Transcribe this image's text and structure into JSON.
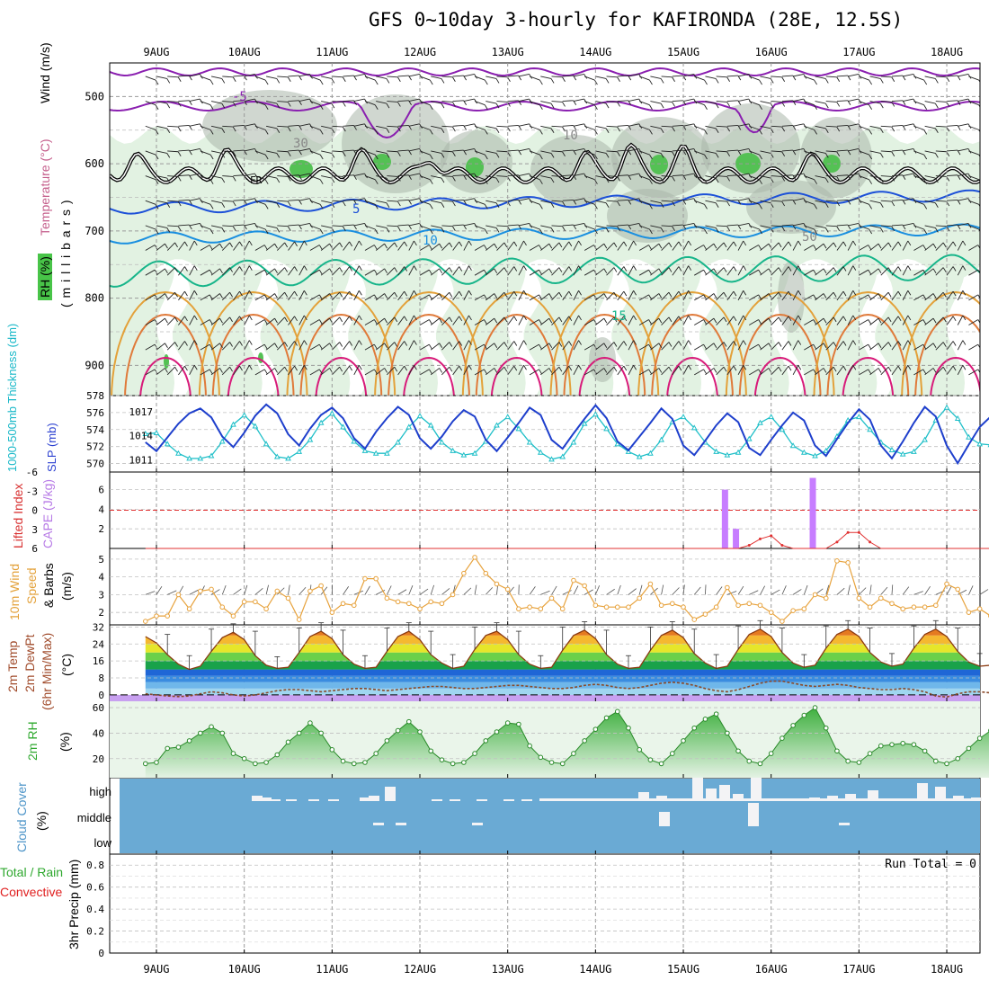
{
  "title": "GFS 0~10day 3-hourly for KAFIRONDA (28E, 12.5S)",
  "dates": [
    "9AUG",
    "10AUG",
    "11AUG",
    "12AUG",
    "13AUG",
    "14AUG",
    "15AUG",
    "16AUG",
    "17AUG",
    "18AUG"
  ],
  "colors": {
    "grid": "#9a9a9a",
    "humid_light": "#e2f2e2",
    "humid_mid": "#b9ddb9",
    "humid_gray": "#a9b6a9",
    "humid_green": "#54c154",
    "cloud_blue": "#6aaad4",
    "cape": "#c77dff",
    "li": "#e03030",
    "wind10": "#e7a23c",
    "thick": "#1fbfc8",
    "slp": "#1e3fcc"
  },
  "upper_air": {
    "ylabel_parts": [
      "Wind (m/s)",
      "Temperature (°C)",
      "RH (%)"
    ],
    "millibars_label": "( m i l l i b a r s )",
    "pressure_ticks": [
      "500",
      "600",
      "700",
      "800",
      "900"
    ],
    "contour_labels": [
      {
        "text": "-5",
        "color": "#8a1fb0"
      },
      {
        "text": "30",
        "color": "#888888"
      },
      {
        "text": "10",
        "color": "#888888"
      },
      {
        "text": "FR",
        "color": "#000000"
      },
      {
        "text": "5",
        "color": "#1c50d8"
      },
      {
        "text": "10",
        "color": "#1a8fe0"
      },
      {
        "text": "15",
        "color": "#17b58a"
      },
      {
        "text": "50",
        "color": "#888888"
      }
    ]
  },
  "thickness_slp": {
    "left_label": "1000-500mb Thickness (dm)",
    "right_label": "SLP (mb)",
    "thickness_ticks": [
      "570",
      "572",
      "574",
      "576",
      "578"
    ],
    "slp_ticks": [
      "1011",
      "1014",
      "1017"
    ]
  },
  "cape_li": {
    "li_label": "Lifted Index",
    "cape_label": "CAPE (J/kg)",
    "li_ticks": [
      "6",
      "3",
      "0",
      "-3",
      "-6"
    ],
    "cape_ticks": [
      "2",
      "4",
      "6"
    ]
  },
  "wind10": {
    "label_lines": [
      "10m Wind",
      "Speed",
      "& Barbs",
      "(m/s)"
    ],
    "ticks": [
      "2",
      "3",
      "4",
      "5"
    ]
  },
  "temp2m": {
    "label_lines": [
      "2m Temp",
      "2m DewPt",
      "(6hr Min/Max)",
      "(°C)"
    ],
    "ticks": [
      "0",
      "8",
      "16",
      "24",
      "32"
    ]
  },
  "rh2m": {
    "label_lines": [
      "2m RH",
      "(%)"
    ],
    "ticks": [
      "20",
      "40",
      "60"
    ]
  },
  "cloud": {
    "label_lines": [
      "Cloud Cover",
      "(%)"
    ],
    "levels": [
      "high",
      "middle",
      "low"
    ]
  },
  "precip": {
    "label_lines": [
      "Total / Rain",
      "Convective",
      "3hr Precip (mm)"
    ],
    "ticks": [
      "0",
      "0.2",
      "0.4",
      "0.6",
      "0.8"
    ],
    "run_total": "Run Total = 0"
  },
  "chart_data": [
    {
      "type": "line",
      "name": "1000-500mb Thickness",
      "y_units": "dm",
      "ylim": [
        569,
        578
      ],
      "values": [
        573.5,
        573.6,
        572.3,
        571.2,
        570.6,
        570.6,
        570.9,
        572.6,
        574.6,
        575.7,
        574.4,
        572.3,
        570.8,
        570.6,
        571.4,
        572.8,
        574.8,
        575.9,
        574.3,
        572.6,
        571.5,
        571.2,
        571.2,
        572.5,
        574.3,
        575.6,
        574.5,
        572.5,
        571.5,
        571.0,
        571.2,
        572.6,
        574.5,
        575.5,
        574.1,
        572.5,
        571.3,
        570.5,
        570.8,
        572.5,
        574.7,
        575.8,
        574.1,
        572.3,
        571.4,
        570.8,
        571.2,
        572.8,
        574.9,
        575.5,
        574.2,
        572.5,
        571.4,
        571.0,
        571.3,
        572.9,
        574.8,
        575.5,
        574.0,
        572.1,
        571.3,
        570.9,
        571.5,
        573.2,
        575.1,
        575.5,
        574.0,
        572.5,
        571.6,
        571.1,
        571.4,
        572.8,
        575.1,
        576.6,
        575.3,
        573.1,
        572.3,
        572.2,
        572.7,
        574.2,
        576.0
      ]
    },
    {
      "type": "line",
      "name": "SLP",
      "y_units": "mb",
      "ylim": [
        1009.5,
        1019
      ],
      "values": [
        1013.2,
        1012.1,
        1013.8,
        1015.5,
        1016.8,
        1017.4,
        1016.3,
        1013.9,
        1012.6,
        1014.4,
        1016.5,
        1017.9,
        1016.8,
        1014.2,
        1012.8,
        1014.9,
        1016.6,
        1017.5,
        1016.2,
        1013.7,
        1012.4,
        1014.5,
        1016.2,
        1017.6,
        1016.6,
        1013.7,
        1012.4,
        1013.9,
        1015.8,
        1017.2,
        1016.4,
        1013.5,
        1012.1,
        1013.8,
        1015.6,
        1017.5,
        1016.6,
        1013.5,
        1012.4,
        1014.3,
        1016.1,
        1017.8,
        1016.2,
        1013.3,
        1012.2,
        1013.9,
        1015.6,
        1017.4,
        1016.1,
        1012.8,
        1011.6,
        1013.4,
        1015.3,
        1016.8,
        1015.7,
        1012.5,
        1011.6,
        1013.5,
        1015.3,
        1016.9,
        1015.9,
        1012.8,
        1011.5,
        1013.6,
        1015.6,
        1017.3,
        1016.0,
        1012.8,
        1011.2,
        1013.3,
        1015.6,
        1017.6,
        1016.4,
        1012.8,
        1010.6,
        1012.9,
        1015.1,
        1016.4,
        1016.3,
        1017.2,
        1018.3
      ]
    },
    {
      "type": "bar",
      "name": "CAPE",
      "y_units": "J/kg",
      "ylim": [
        0,
        7.8
      ],
      "bars": [
        {
          "day_offset": 7.0,
          "value": 6.0
        },
        {
          "day_offset": 7.125,
          "value": 2.0
        },
        {
          "day_offset": 8.0,
          "value": 7.2
        }
      ]
    },
    {
      "type": "line",
      "name": "Lifted Index",
      "y_units": "degC",
      "ylim": [
        6,
        -6
      ],
      "values": [
        6.0,
        6.0,
        6.0,
        6.0,
        6.0,
        6.0,
        6.0,
        6.0,
        6.0,
        6.0,
        6.0,
        6.0,
        6.0,
        6.0,
        6.0,
        6.0,
        6.0,
        6.0,
        6.0,
        6.0,
        6.0,
        6.0,
        6.0,
        6.0,
        6.0,
        6.0,
        6.0,
        6.0,
        6.0,
        6.0,
        6.0,
        6.0,
        6.0,
        6.0,
        6.0,
        6.0,
        6.0,
        6.0,
        6.0,
        6.0,
        6.0,
        6.0,
        6.0,
        6.0,
        6.0,
        6.0,
        6.0,
        6.0,
        6.0,
        6.0,
        6.0,
        6.0,
        6.0,
        6.0,
        6.0,
        5.5,
        4.5,
        4.0,
        5.5,
        6.0,
        6.0,
        6.0,
        6.0,
        5.0,
        3.5,
        3.5,
        5.0,
        6.0,
        6.0,
        6.0,
        6.0,
        6.0,
        6.0,
        6.0,
        6.0,
        6.0,
        6.0,
        6.0,
        6.0,
        6.0,
        6.0
      ]
    },
    {
      "type": "line",
      "name": "10m Wind Speed",
      "y_units": "m/s",
      "ylim": [
        1.3,
        5.6
      ],
      "values": [
        1.5,
        1.8,
        1.8,
        3.0,
        2.2,
        3.2,
        3.3,
        2.3,
        1.8,
        2.6,
        2.6,
        2.2,
        3.2,
        2.8,
        1.6,
        3.2,
        3.5,
        2.0,
        2.5,
        2.4,
        3.9,
        3.9,
        2.8,
        2.6,
        2.5,
        2.2,
        2.6,
        2.5,
        3.0,
        4.2,
        5.1,
        4.2,
        3.6,
        3.3,
        2.2,
        2.3,
        2.2,
        2.8,
        2.2,
        3.8,
        3.5,
        2.4,
        2.3,
        2.3,
        2.3,
        2.8,
        3.6,
        2.4,
        2.5,
        2.3,
        1.6,
        1.9,
        2.3,
        3.4,
        2.4,
        2.5,
        2.4,
        2.0,
        1.5,
        2.1,
        2.2,
        3.0,
        2.8,
        4.9,
        4.8,
        2.8,
        2.3,
        2.8,
        2.5,
        2.2,
        2.3,
        2.3,
        2.4,
        3.6,
        3.3,
        2.0,
        2.2,
        1.8,
        1.6,
        1.9,
        2.9,
        3.1,
        3.6
      ]
    },
    {
      "type": "area",
      "name": "2m Temperature",
      "y_units": "degC",
      "ylim": [
        -3,
        33
      ],
      "values": [
        27.5,
        24.5,
        19.0,
        14.5,
        12.0,
        13.5,
        20.5,
        27.0,
        29.5,
        26.0,
        18.5,
        14.0,
        12.5,
        13.0,
        20.0,
        27.5,
        30.0,
        26.5,
        19.0,
        14.5,
        12.5,
        13.0,
        20.5,
        27.5,
        30.0,
        26.0,
        19.0,
        15.0,
        12.5,
        13.5,
        21.5,
        28.0,
        30.0,
        26.0,
        19.0,
        14.5,
        12.5,
        13.0,
        21.0,
        28.0,
        30.5,
        26.5,
        19.0,
        14.5,
        12.5,
        13.0,
        21.0,
        28.0,
        30.5,
        27.0,
        19.5,
        15.0,
        12.5,
        13.5,
        21.5,
        28.5,
        31.0,
        27.5,
        20.0,
        15.0,
        13.0,
        14.0,
        22.0,
        28.5,
        31.0,
        27.5,
        20.0,
        15.5,
        13.5,
        14.5,
        22.0,
        28.5,
        31.0,
        27.5,
        20.5,
        15.5,
        13.5,
        14.0,
        17.0
      ]
    },
    {
      "type": "line",
      "name": "2m Dew Point",
      "y_units": "degC",
      "ylim": [
        -3,
        33
      ],
      "values": [
        0.5,
        0.0,
        -0.5,
        -0.8,
        -0.5,
        0.5,
        1.5,
        1.0,
        0.0,
        -0.5,
        0.0,
        1.0,
        2.0,
        2.5,
        2.5,
        2.0,
        1.5,
        2.0,
        2.5,
        3.0,
        3.0,
        2.5,
        2.0,
        2.5,
        3.0,
        3.5,
        4.0,
        4.0,
        3.5,
        3.0,
        3.0,
        3.5,
        4.0,
        4.5,
        4.5,
        4.0,
        3.5,
        3.0,
        3.0,
        3.5,
        4.5,
        5.0,
        4.5,
        3.5,
        3.0,
        3.5,
        4.5,
        5.5,
        6.0,
        5.5,
        4.5,
        3.0,
        2.0,
        1.5,
        2.5,
        4.0,
        5.5,
        6.5,
        6.5,
        5.5,
        4.5,
        4.0,
        4.5,
        5.0,
        4.5,
        3.5,
        3.0,
        2.5,
        2.5,
        3.0,
        2.5,
        1.5,
        -0.5,
        -1.0,
        0.5,
        1.5,
        1.5,
        1.0,
        1.5,
        2.0,
        2.5
      ]
    },
    {
      "type": "area",
      "name": "2m RH",
      "y_units": "%",
      "ylim": [
        5,
        65
      ],
      "values": [
        16,
        17,
        28,
        29,
        34,
        40,
        45,
        40,
        24,
        20,
        16,
        17,
        23,
        33,
        40,
        48,
        40,
        27,
        18,
        16,
        17,
        24,
        34,
        42,
        49,
        41,
        26,
        19,
        16,
        17,
        24,
        34,
        41,
        48,
        47,
        30,
        21,
        17,
        16,
        24,
        34,
        43,
        52,
        57,
        44,
        27,
        19,
        16,
        24,
        34,
        44,
        51,
        55,
        40,
        26,
        18,
        16,
        24,
        36,
        46,
        54,
        60,
        44,
        26,
        18,
        17,
        24,
        30,
        31,
        32,
        31,
        26,
        18,
        16,
        20,
        28,
        36,
        42,
        45,
        40,
        34
      ]
    },
    {
      "type": "area",
      "name": "3hr Precip",
      "y_units": "mm",
      "ylim": [
        0,
        0.9
      ],
      "values": [
        0
      ],
      "run_total": 0
    }
  ]
}
